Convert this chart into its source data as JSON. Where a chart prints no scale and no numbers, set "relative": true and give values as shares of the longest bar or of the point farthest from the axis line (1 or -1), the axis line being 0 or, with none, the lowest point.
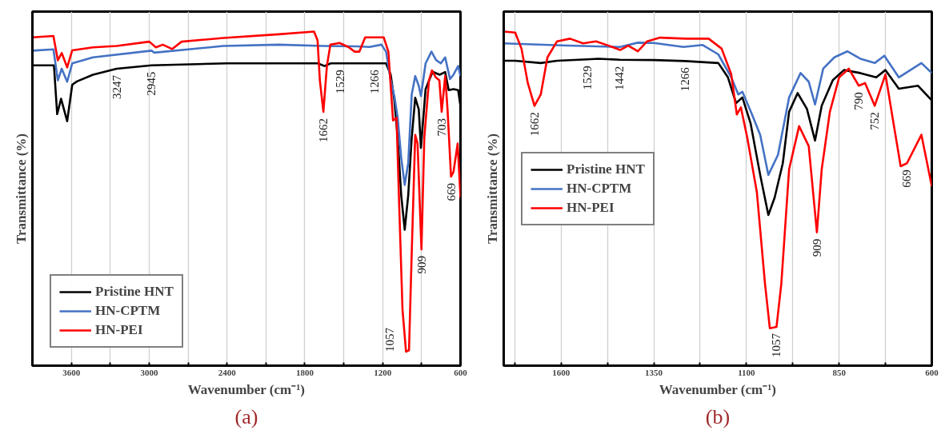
{
  "chart_data": [
    {
      "type": "line",
      "relative": true,
      "xlabel": "Wavenumber (cm⁻¹)",
      "ylabel": "Transmittance (%)",
      "xlim": [
        3900,
        600
      ],
      "xticks": [
        3600,
        {
          "value": 3300,
          "label": null
        },
        3000,
        {
          "value": 2700,
          "label": null
        },
        2400,
        {
          "value": 2100,
          "label": null
        },
        1800,
        {
          "value": 1500,
          "label": null
        },
        1200,
        {
          "value": 900,
          "label": null
        },
        600
      ],
      "grid": "x",
      "legend": "bottom left",
      "marker": "none",
      "line_style": "solid",
      "series": [
        {
          "name": "Pristine HNT",
          "color": "#000000",
          "x": [
            3900,
            3734,
            3709,
            3679,
            3632,
            3593,
            3557,
            3433,
            3251,
            2982,
            2400,
            1800,
            1700,
            1648,
            1600,
            1529,
            1266,
            1174,
            1138,
            1110,
            1084,
            1057,
            1030,
            1003,
            976,
            949,
            922,
            905,
            869,
            815,
            761,
            718,
            691,
            654,
            618,
            600
          ],
          "values": [
            0.899,
            0.899,
            0.753,
            0.799,
            0.732,
            0.841,
            0.851,
            0.871,
            0.889,
            0.899,
            0.905,
            0.905,
            0.905,
            0.897,
            0.905,
            0.905,
            0.905,
            0.905,
            0.871,
            0.794,
            0.682,
            0.51,
            0.407,
            0.51,
            0.682,
            0.802,
            0.768,
            0.652,
            0.828,
            0.88,
            0.871,
            0.879,
            0.825,
            0.828,
            0.825,
            0.776
          ]
        },
        {
          "name": "HN-CPTM",
          "color": "#4472c4",
          "x": [
            3900,
            3738,
            3704,
            3674,
            3632,
            3593,
            3433,
            2982,
            2960,
            2428,
            2000,
            1662,
            1400,
            1300,
            1209,
            1174,
            1138,
            1110,
            1084,
            1057,
            1030,
            1003,
            976,
            949,
            922,
            905,
            869,
            824,
            788,
            752,
            718,
            681,
            654,
            618,
            600
          ],
          "values": [
            0.943,
            0.947,
            0.854,
            0.889,
            0.85,
            0.905,
            0.923,
            0.943,
            0.937,
            0.957,
            0.961,
            0.957,
            0.956,
            0.954,
            0.961,
            0.94,
            0.854,
            0.807,
            0.742,
            0.622,
            0.541,
            0.606,
            0.812,
            0.867,
            0.838,
            0.807,
            0.905,
            0.94,
            0.915,
            0.905,
            0.923,
            0.858,
            0.871,
            0.897,
            0.867
          ]
        },
        {
          "name": "HN-PEI",
          "color": "#ff0000",
          "x": [
            3900,
            3738,
            3704,
            3674,
            3632,
            3593,
            3433,
            3251,
            2999,
            2948,
            2895,
            2822,
            2750,
            2428,
            2000,
            1729,
            1702,
            1684,
            1657,
            1630,
            1603,
            1532,
            1460,
            1416,
            1380,
            1335,
            1245,
            1192,
            1156,
            1120,
            1093,
            1075,
            1047,
            1020,
            997,
            976,
            949,
            931,
            901,
            879,
            843,
            820,
            790,
            763,
            745,
            718,
            700,
            673,
            654,
            622,
            600
          ],
          "values": [
            0.983,
            0.987,
            0.914,
            0.936,
            0.893,
            0.944,
            0.953,
            0.957,
            0.97,
            0.953,
            0.961,
            0.948,
            0.97,
            0.981,
            0.992,
            1.0,
            0.974,
            0.854,
            0.76,
            0.897,
            0.961,
            0.966,
            0.953,
            0.94,
            0.94,
            0.983,
            0.983,
            0.983,
            0.94,
            0.734,
            0.742,
            0.51,
            0.168,
            0.042,
            0.046,
            0.338,
            0.691,
            0.665,
            0.348,
            0.683,
            0.854,
            0.884,
            0.863,
            0.854,
            0.76,
            0.867,
            0.768,
            0.566,
            0.58,
            0.665,
            0.503
          ]
        }
      ],
      "annotations": [
        {
          "text": "3247",
          "x": 3251,
          "y": 0.889
        },
        {
          "text": "2945",
          "x": 2982,
          "y": 0.899
        },
        {
          "text": "1662",
          "x": 1657,
          "y": 0.76
        },
        {
          "text": "1529",
          "x": 1529,
          "y": 0.905
        },
        {
          "text": "1266",
          "x": 1266,
          "y": 0.905
        },
        {
          "text": "1057",
          "x": 1020,
          "y": 0.042
        },
        {
          "text": "909",
          "x": 901,
          "y": 0.348
        },
        {
          "text": "703",
          "x": 745,
          "y": 0.76
        },
        {
          "text": "669",
          "x": 673,
          "y": 0.566
        },
        "(a)"
      ]
    },
    {
      "type": "line",
      "relative": true,
      "xlabel": "Wavenumber (cm⁻¹)",
      "ylabel": "Transmittance (%)",
      "xlim": [
        1755,
        600
      ],
      "xticks": [
        {
          "value": 1725,
          "label": null
        },
        1600,
        {
          "value": 1475,
          "label": null
        },
        1350,
        {
          "value": 1225,
          "label": null
        },
        1100,
        {
          "value": 975,
          "label": null
        },
        850,
        {
          "value": 725,
          "label": null
        },
        600
      ],
      "grid": "x",
      "legend": "left",
      "marker": "none",
      "line_style": "solid",
      "series": [
        {
          "name": "Pristine HNT",
          "color": "#000000",
          "x": [
            1755,
            1724,
            1655,
            1611,
            1529,
            1500,
            1442,
            1350,
            1266,
            1176,
            1150,
            1128,
            1111,
            1089,
            1063,
            1041,
            1024,
            1002,
            985,
            962,
            937,
            915,
            897,
            867,
            837,
            793,
            750,
            725,
            689,
            637,
            600
          ],
          "values": [
            0.913,
            0.913,
            0.906,
            0.913,
            0.917,
            0.919,
            0.916,
            0.915,
            0.912,
            0.906,
            0.863,
            0.786,
            0.803,
            0.726,
            0.571,
            0.451,
            0.503,
            0.606,
            0.76,
            0.816,
            0.769,
            0.674,
            0.778,
            0.855,
            0.885,
            0.876,
            0.863,
            0.885,
            0.829,
            0.838,
            0.794
          ]
        },
        {
          "name": "HN-CPTM",
          "color": "#4472c4",
          "x": [
            1755,
            1600,
            1441,
            1393,
            1350,
            1270,
            1218,
            1176,
            1141,
            1122,
            1111,
            1085,
            1063,
            1041,
            1015,
            985,
            954,
            932,
            915,
            893,
            863,
            828,
            793,
            754,
            728,
            689,
            628,
            600
          ],
          "values": [
            0.965,
            0.959,
            0.954,
            0.967,
            0.966,
            0.954,
            0.96,
            0.932,
            0.863,
            0.812,
            0.82,
            0.752,
            0.691,
            0.571,
            0.631,
            0.803,
            0.876,
            0.85,
            0.782,
            0.889,
            0.923,
            0.941,
            0.919,
            0.906,
            0.928,
            0.863,
            0.906,
            0.876
          ]
        },
        {
          "name": "HN-PEI",
          "color": "#ff0000",
          "x": [
            1755,
            1724,
            1707,
            1690,
            1672,
            1655,
            1637,
            1611,
            1576,
            1541,
            1506,
            1472,
            1441,
            1419,
            1393,
            1368,
            1333,
            1263,
            1202,
            1167,
            1141,
            1126,
            1115,
            1098,
            1072,
            1050,
            1037,
            1019,
            1006,
            985,
            958,
            932,
            910,
            897,
            875,
            850,
            824,
            797,
            780,
            754,
            725,
            702,
            684,
            667,
            628,
            600
          ],
          "values": [
            1.0,
            0.997,
            0.949,
            0.846,
            0.778,
            0.812,
            0.923,
            0.971,
            0.979,
            0.965,
            0.971,
            0.958,
            0.945,
            0.958,
            0.941,
            0.971,
            0.982,
            0.979,
            0.979,
            0.949,
            0.872,
            0.752,
            0.773,
            0.683,
            0.52,
            0.245,
            0.112,
            0.116,
            0.245,
            0.588,
            0.717,
            0.657,
            0.399,
            0.588,
            0.76,
            0.863,
            0.889,
            0.838,
            0.846,
            0.778,
            0.872,
            0.717,
            0.597,
            0.606,
            0.691,
            0.537
          ]
        }
      ],
      "annotations": [
        {
          "text": "1662",
          "x": 1672,
          "y": 0.778
        },
        {
          "text": "1529",
          "x": 1529,
          "y": 0.917
        },
        {
          "text": "1442",
          "x": 1442,
          "y": 0.916
        },
        {
          "text": "1266",
          "x": 1266,
          "y": 0.912
        },
        {
          "text": "1057",
          "x": 1019,
          "y": 0.116
        },
        {
          "text": "909",
          "x": 910,
          "y": 0.399
        },
        {
          "text": "790",
          "x": 797,
          "y": 0.838
        },
        {
          "text": "752",
          "x": 754,
          "y": 0.778
        },
        {
          "text": "669",
          "x": 667,
          "y": 0.606
        },
        "(b)"
      ]
    }
  ]
}
